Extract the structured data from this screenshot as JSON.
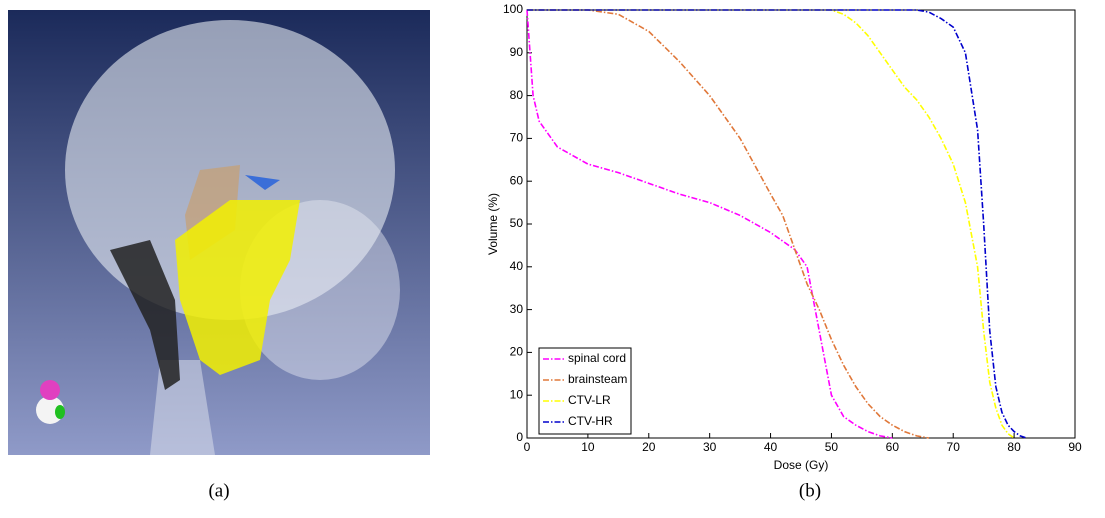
{
  "figure": {
    "caption_a": "(a)",
    "caption_b": "(b)"
  },
  "chart_data": {
    "type": "line",
    "x_label": "Dose (Gy)",
    "y_label": "Volume (%)",
    "x": [
      0,
      1,
      2,
      5,
      10,
      15,
      20,
      25,
      30,
      35,
      40,
      42,
      44,
      46,
      48,
      50,
      52,
      54,
      56,
      58,
      60,
      62,
      64,
      66,
      68,
      70,
      72,
      74,
      75,
      76,
      77,
      78,
      79,
      80,
      81,
      82
    ],
    "series": [
      {
        "name": "spinal cord",
        "color": "#ff00ff",
        "values": [
          100,
          80,
          74,
          68,
          64,
          62,
          59.5,
          57,
          55,
          52,
          48,
          46,
          44,
          40,
          25,
          10,
          5,
          3,
          1.5,
          0.5,
          0,
          null,
          null,
          null,
          null,
          null,
          null,
          null,
          null,
          null,
          null,
          null,
          null,
          null,
          null,
          null
        ]
      },
      {
        "name": "brainsteam",
        "color": "#e0783a",
        "values": [
          100,
          100,
          100,
          100,
          100,
          99,
          95,
          88,
          80,
          70,
          57,
          52,
          44,
          36,
          30,
          23,
          17,
          12,
          8,
          5,
          3,
          1.5,
          0.5,
          0,
          null,
          null,
          null,
          null,
          null,
          null,
          null,
          null,
          null,
          null,
          null,
          null
        ]
      },
      {
        "name": "CTV-LR",
        "color": "#ffff00",
        "values": [
          100,
          100,
          100,
          100,
          100,
          100,
          100,
          100,
          100,
          100,
          100,
          100,
          100,
          100,
          100,
          100,
          99,
          97,
          94,
          90,
          86,
          82,
          79,
          75,
          70,
          64,
          55,
          40,
          25,
          13,
          7,
          3,
          1,
          0,
          null,
          null
        ]
      },
      {
        "name": "CTV-HR",
        "color": "#0000cc",
        "values": [
          100,
          100,
          100,
          100,
          100,
          100,
          100,
          100,
          100,
          100,
          100,
          100,
          100,
          100,
          100,
          100,
          100,
          100,
          100,
          100,
          100,
          100,
          100,
          99.5,
          98,
          96,
          90,
          72,
          50,
          25,
          12,
          6,
          3,
          1.5,
          0.5,
          0
        ]
      }
    ],
    "xlim": [
      0,
      90
    ],
    "xticks": [
      0,
      10,
      20,
      30,
      40,
      50,
      60,
      70,
      80,
      90
    ],
    "ylim": [
      0,
      100
    ],
    "yticks": [
      0,
      10,
      20,
      30,
      40,
      50,
      60,
      70,
      80,
      90,
      100
    ],
    "grid": false,
    "legend": "lower-left"
  }
}
